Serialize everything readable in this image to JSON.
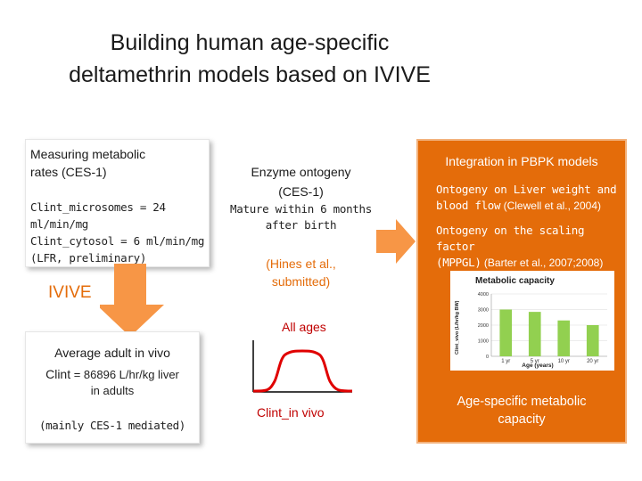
{
  "title": {
    "line1": "Building human age-specific",
    "line2": "deltamethrin models based on IVIVE"
  },
  "box_measuring": {
    "heading_line1": "Measuring metabolic",
    "heading_line2": "rates (CES-1)",
    "value_line1": "Clint_microsomes = 24",
    "value_line2": "ml/min/mg",
    "value_line3": "Clint_cytosol = 6 ml/min/mg",
    "value_line4": "(LFR, preliminary)"
  },
  "ivive_label": "IVIVE",
  "box_adult": {
    "heading": "Average adult in vivo",
    "clint_prefix": "Clint",
    "clint_value": " = 86896 L/hr/kg liver",
    "clint_line2": "in adults",
    "note": "(mainly CES-1 mediated)"
  },
  "ontogeny": {
    "heading_line1": "Enzyme ontogeny",
    "heading_line2": "(CES-1)",
    "sub_line1": "Mature within 6 months",
    "sub_line2": "after birth",
    "ref_line1": "(Hines et al.,",
    "ref_line2": "submitted)",
    "all_ages": "All ages",
    "clint_label": "Clint_in vivo"
  },
  "pbpk": {
    "heading": "Integration in PBPK models",
    "item1_line1": "Ontogeny on Liver weight and",
    "item1_line2": "blood flow",
    "item1_cite": " (Clewell et al., 2004)",
    "item2_line1": "Ontogeny on the scaling factor",
    "item2_line2": "(MPPGL)",
    "item2_cite": " (Barter et al., 2007;2008)",
    "footer_line1": "Age-specific metabolic",
    "footer_line2": "capacity"
  },
  "chart_data": {
    "type": "bar",
    "title": "Metabolic capacity",
    "xlabel": "Age (years)",
    "ylabel": "Clint_vivo (L/hr/kg BW)",
    "categories": [
      "1 yr",
      "5 yr",
      "10 yr",
      "20 yr"
    ],
    "values": [
      3000,
      2850,
      2300,
      2000
    ],
    "yticks": [
      "0",
      "1000",
      "2000",
      "3000",
      "4000"
    ],
    "ylim": [
      0,
      4000
    ],
    "grid": true,
    "bar_color": "#92d050"
  },
  "colors": {
    "accent_orange": "#e46c0a",
    "red_text": "#c00000",
    "bar_green": "#92d050"
  }
}
